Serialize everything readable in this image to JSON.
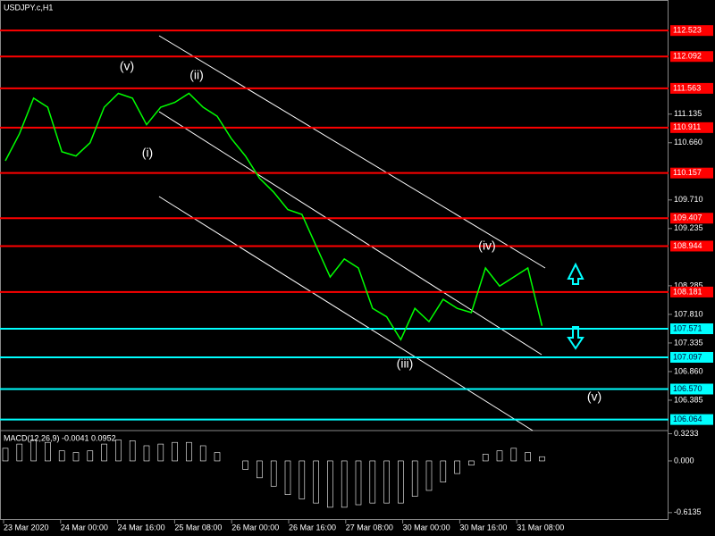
{
  "chart_data": {
    "type": "line",
    "title": "USDJPY.c,H1",
    "color": "#00ff00",
    "grid": false,
    "values": [
      110.36,
      110.81,
      111.4,
      111.25,
      110.51,
      110.44,
      110.66,
      111.25,
      111.48,
      111.4,
      110.96,
      111.25,
      111.33,
      111.48,
      111.25,
      111.1,
      110.73,
      110.44,
      110.07,
      109.84,
      109.55,
      109.47,
      108.95,
      108.43,
      108.73,
      108.58,
      107.91,
      107.77,
      107.39,
      107.91,
      107.69,
      108.06,
      107.91,
      107.84,
      108.58,
      108.28,
      108.43,
      108.58,
      107.62
    ],
    "x_labels": [
      "23 Mar 2020",
      "24 Mar 00:00",
      "24 Mar 16:00",
      "25 Mar 08:00",
      "26 Mar 00:00",
      "26 Mar 16:00",
      "27 Mar 08:00",
      "30 Mar 00:00",
      "30 Mar 16:00",
      "31 Mar 08:00"
    ],
    "ylim": [
      105.91,
      113.03
    ],
    "yticks": [
      111.135,
      {
        "value": 110.66,
        "label": "110.660"
      },
      {
        "value": 109.71,
        "label": "109.710"
      },
      109.235,
      108.285,
      {
        "value": 107.81,
        "label": "107.810"
      },
      107.335,
      {
        "value": 106.86,
        "label": "106.860"
      },
      106.385
    ],
    "resistance_color": "#ff0000",
    "support_color": "#00ffff",
    "resistance": [
      112.523,
      112.092,
      111.563,
      110.911,
      110.157,
      109.407,
      108.944,
      108.181
    ],
    "support": [
      107.571,
      107.097,
      {
        "value": 106.57,
        "label": "106.570"
      },
      106.064
    ],
    "annotations": [
      "(v)",
      "(ii)",
      "(i)",
      "(iii)",
      "(iv)",
      "(v)"
    ],
    "macd": {
      "label": "MACD(12,26,9) -0.0041 0.0952",
      "color": "#ffffff",
      "ylim": [
        -0.7,
        0.36
      ],
      "yticks": [
        0.3233,
        {
          "value": 0,
          "label": "0.000"
        },
        -0.6135
      ],
      "values": [
        0.15,
        0.2,
        0.25,
        0.22,
        0.12,
        0.1,
        0.12,
        0.2,
        0.25,
        0.24,
        0.18,
        0.2,
        0.22,
        0.22,
        0.18,
        0.1,
        0,
        -0.1,
        -0.2,
        -0.3,
        -0.4,
        -0.45,
        -0.5,
        -0.55,
        -0.55,
        -0.52,
        -0.5,
        -0.5,
        -0.5,
        -0.42,
        -0.35,
        -0.25,
        -0.15,
        -0.05,
        0.08,
        0.12,
        0.15,
        0.1,
        0.05
      ]
    }
  }
}
